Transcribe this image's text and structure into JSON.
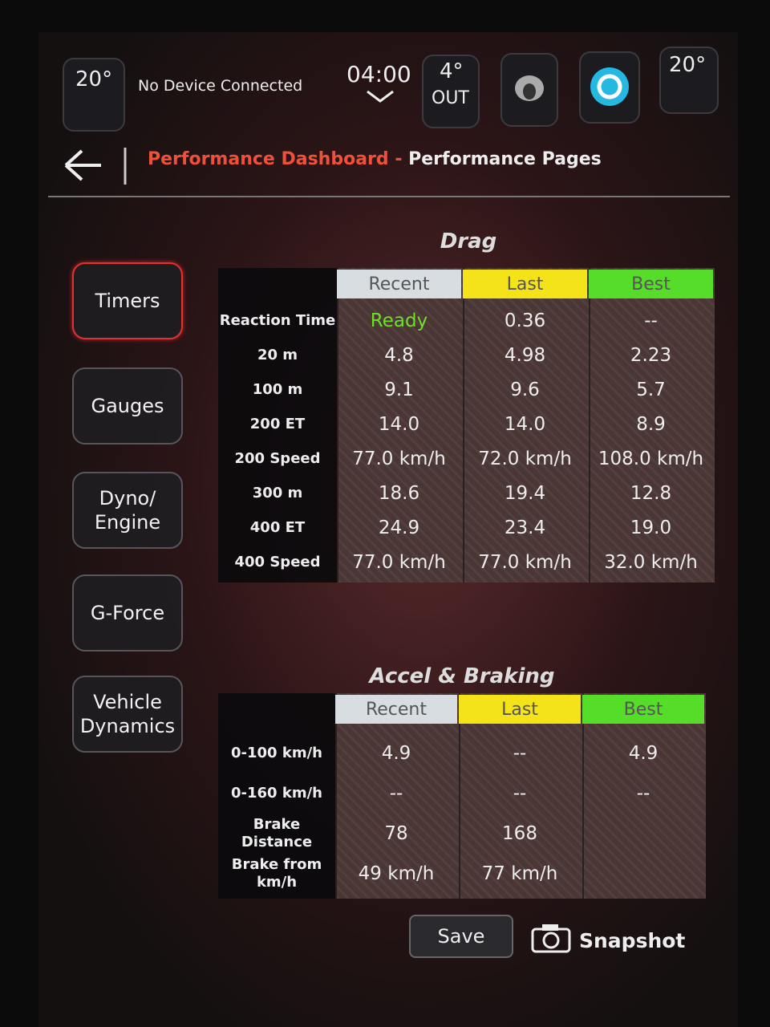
{
  "status_bar": {
    "left_temp": "20°",
    "device": "No Device Connected",
    "time": "04:00",
    "out_temp": "4°",
    "out_label": "OUT",
    "right_temp": "20°"
  },
  "header": {
    "title_accent": "Performance Dashboard",
    "separator": "-",
    "title": "Performance Pages"
  },
  "tabs": [
    "Timers",
    "Gauges",
    "Dyno/ Engine",
    "G-Force",
    "Vehicle Dynamics"
  ],
  "drag": {
    "title": "Drag",
    "columns": [
      "Recent",
      "Last",
      "Best"
    ],
    "rows": [
      {
        "label": "Reaction Time",
        "values": [
          "Ready",
          "0.36",
          "--"
        ]
      },
      {
        "label": "20 m",
        "values": [
          "4.8",
          "4.98",
          "2.23"
        ]
      },
      {
        "label": "100 m",
        "values": [
          "9.1",
          "9.6",
          "5.7"
        ]
      },
      {
        "label": "200 ET",
        "values": [
          "14.0",
          "14.0",
          "8.9"
        ]
      },
      {
        "label": "200 Speed",
        "values": [
          "77.0 km/h",
          "72.0 km/h",
          "108.0 km/h"
        ]
      },
      {
        "label": "300 m",
        "values": [
          "18.6",
          "19.4",
          "12.8"
        ]
      },
      {
        "label": "400 ET",
        "values": [
          "24.9",
          "23.4",
          "19.0"
        ]
      },
      {
        "label": "400 Speed",
        "values": [
          "77.0 km/h",
          "77.0 km/h",
          "32.0 km/h"
        ]
      }
    ]
  },
  "accel": {
    "title": "Accel & Braking",
    "columns": [
      "Recent",
      "Last",
      "Best"
    ],
    "rows": [
      {
        "label": "0-100 km/h",
        "values": [
          "4.9",
          "--",
          "4.9"
        ]
      },
      {
        "label": "0-160 km/h",
        "values": [
          "--",
          "--",
          "--"
        ]
      },
      {
        "label": "Brake Distance",
        "values": [
          "78",
          "168",
          null
        ]
      },
      {
        "label": "Brake from km/h",
        "values": [
          "49 km/h",
          "77 km/h",
          null
        ]
      }
    ]
  },
  "buttons": {
    "save": "Save",
    "snapshot": "Snapshot"
  }
}
